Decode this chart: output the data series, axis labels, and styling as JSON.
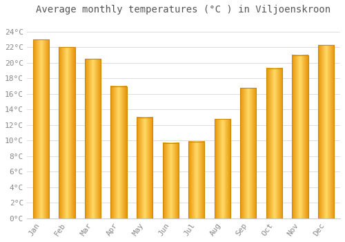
{
  "title": "Average monthly temperatures (°C ) in Viljoenskroon",
  "months": [
    "Jan",
    "Feb",
    "Mar",
    "Apr",
    "May",
    "Jun",
    "Jul",
    "Aug",
    "Sep",
    "Oct",
    "Nov",
    "Dec"
  ],
  "values": [
    23.0,
    22.0,
    20.5,
    17.0,
    13.0,
    9.7,
    9.9,
    12.8,
    16.8,
    19.3,
    21.0,
    22.3
  ],
  "bar_color_left": "#F5A623",
  "bar_color_center": "#FFD966",
  "bar_color_right": "#F5A623",
  "background_color": "#FFFFFF",
  "grid_color": "#DDDDDD",
  "title_color": "#555555",
  "tick_label_color": "#888888",
  "ytick_labels": [
    "0°C",
    "2°C",
    "4°C",
    "6°C",
    "8°C",
    "10°C",
    "12°C",
    "14°C",
    "16°C",
    "18°C",
    "20°C",
    "22°C",
    "24°C"
  ],
  "ytick_values": [
    0,
    2,
    4,
    6,
    8,
    10,
    12,
    14,
    16,
    18,
    20,
    22,
    24
  ],
  "ylim": [
    0,
    25.5
  ],
  "title_fontsize": 10,
  "tick_fontsize": 8
}
